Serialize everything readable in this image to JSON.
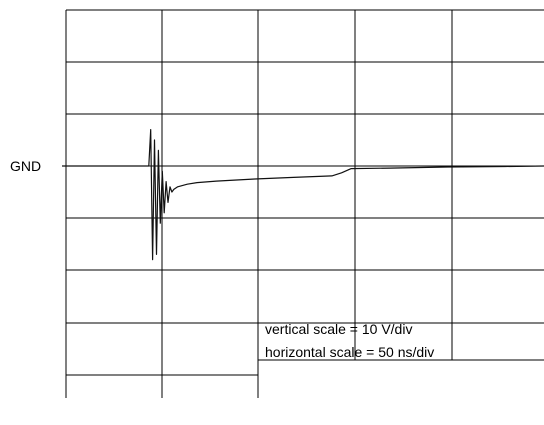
{
  "chart_data": {
    "type": "line",
    "title": "",
    "ground_label": "GND",
    "annotations": {
      "vertical_scale": "vertical scale = 10 V/div",
      "horizontal_scale": "horizontal scale = 50 ns/div"
    },
    "grid": true,
    "x_units": "ns",
    "y_units": "V",
    "xlim": [
      0,
      250
    ],
    "ylim": [
      -20,
      10
    ],
    "series": [
      {
        "values_note": "",
        "x": [
          0,
          20,
          40,
          45,
          46,
          47,
          48,
          49,
          50,
          51,
          52,
          53,
          54,
          55,
          56,
          57,
          58,
          60,
          65,
          70,
          80,
          100,
          120,
          140,
          145,
          150,
          170,
          200,
          230,
          250
        ],
        "y": [
          0,
          0,
          0,
          0,
          7,
          -18,
          5,
          -17,
          3,
          -11,
          -1,
          -9,
          -3,
          -7,
          -4,
          -5,
          -4.5,
          -4,
          -3.5,
          -3.2,
          -2.9,
          -2.5,
          -2.2,
          -1.9,
          -1.3,
          -0.5,
          -0.4,
          -0.2,
          -0.1,
          0
        ]
      }
    ]
  }
}
